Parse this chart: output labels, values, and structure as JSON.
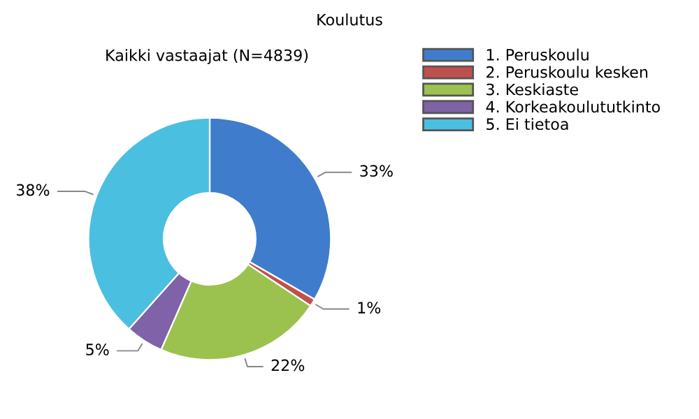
{
  "chart_data": {
    "type": "donut",
    "title": "Koulutus",
    "subtitle": "Kaikki vastaajat (N=4839)",
    "categories": [
      "1. Peruskoulu",
      "2. Peruskoulu kesken",
      "3. Keskiaste",
      "4. Korkeakoulututkinto",
      "5. Ei tietoa"
    ],
    "values": [
      33,
      1,
      22,
      5,
      38
    ],
    "colors": [
      "#3f7ccc",
      "#c0504d",
      "#9bc14f",
      "#7f62a8",
      "#4bbfe0"
    ],
    "value_labels": [
      "33%",
      "1%",
      "22%",
      "5%",
      "38%"
    ],
    "legend": "top right"
  }
}
